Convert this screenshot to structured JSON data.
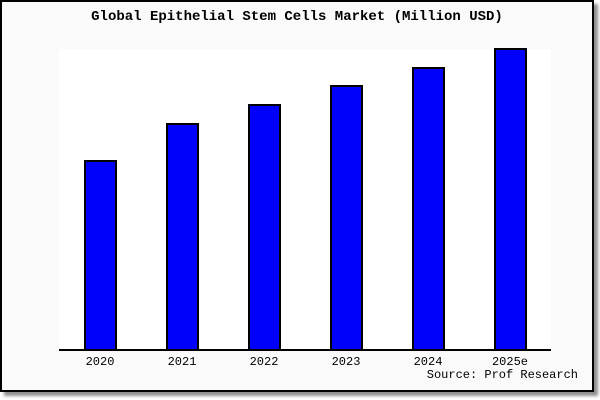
{
  "window": {
    "background": "#fafafa",
    "border_color": "#000000",
    "shadow_color": "#8f8f8f"
  },
  "chart_data": {
    "type": "bar",
    "title": "Global Epithelial Stem Cells Market (Million USD)",
    "categories": [
      "2020",
      "2021",
      "2022",
      "2023",
      "2024",
      "2025e"
    ],
    "values": [
      62.8,
      75.1,
      81.3,
      87.7,
      93.7,
      100
    ],
    "value_scale": "relative bar height, tallest bar (2025e) = 100; chart shows no y-axis tick values",
    "xlabel": "",
    "ylabel": "",
    "ylim": [
      0,
      100.3
    ],
    "grid": false,
    "legend": false,
    "bar_color": "#0000fb",
    "bar_border_color": "#000000",
    "axis_color": "#000000",
    "plot_background": "#ffffff"
  },
  "source": {
    "label": "Source: Prof Research"
  }
}
